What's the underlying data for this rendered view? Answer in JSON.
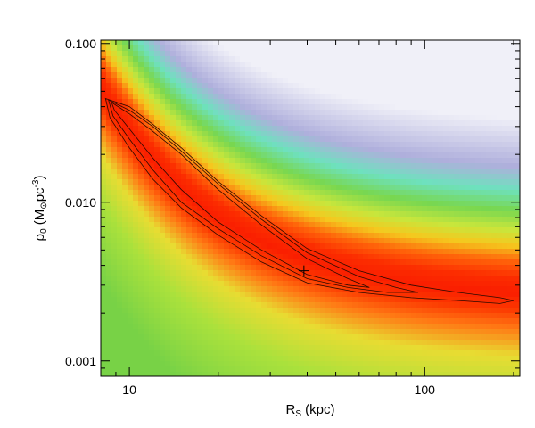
{
  "chart_data": {
    "type": "heatmap",
    "title": "",
    "xlabel": {
      "main": "R",
      "sub": "S",
      "unit": " (kpc)"
    },
    "ylabel": {
      "main": "ρ",
      "sub": "0",
      "unit_open": " (M",
      "sun": "⊙",
      "unit_mid": "pc",
      "exp": "-3",
      "unit_close": ")"
    },
    "x_scale": "log",
    "y_scale": "log",
    "xlim": [
      8.0,
      210.0
    ],
    "ylim": [
      0.0008,
      0.105
    ],
    "x_ticks": [
      {
        "value": 10,
        "label": "10"
      },
      {
        "value": 100,
        "label": "100"
      }
    ],
    "y_ticks": [
      {
        "value": 0.001,
        "label": "0.001"
      },
      {
        "value": 0.01,
        "label": "0.010"
      },
      {
        "value": 0.1,
        "label": "0.100"
      }
    ],
    "colormap": [
      "#e6e6a0",
      "#7fd257",
      "#26b426",
      "#7fdcd0",
      "#a5a5d8",
      "#f4f4f8"
    ],
    "best_fit": {
      "x": 39.0,
      "y": 0.0037
    },
    "contours": [
      {
        "name": "inner",
        "points": [
          [
            8.7,
            0.0425
          ],
          [
            10,
            0.036
          ],
          [
            12,
            0.028
          ],
          [
            15,
            0.02
          ],
          [
            20,
            0.012
          ],
          [
            28,
            0.0072
          ],
          [
            40,
            0.0044
          ],
          [
            55,
            0.0033
          ],
          [
            65,
            0.0029
          ],
          [
            55,
            0.003
          ],
          [
            40,
            0.0035
          ],
          [
            28,
            0.005
          ],
          [
            20,
            0.0075
          ],
          [
            15,
            0.012
          ],
          [
            12,
            0.019
          ],
          [
            10,
            0.029
          ],
          [
            8.9,
            0.038
          ],
          [
            8.7,
            0.0425
          ]
        ]
      },
      {
        "name": "middle",
        "points": [
          [
            8.5,
            0.044
          ],
          [
            10,
            0.038
          ],
          [
            12,
            0.03
          ],
          [
            15,
            0.021
          ],
          [
            20,
            0.013
          ],
          [
            28,
            0.0078
          ],
          [
            40,
            0.0048
          ],
          [
            60,
            0.0034
          ],
          [
            80,
            0.0029
          ],
          [
            95,
            0.0027
          ],
          [
            75,
            0.0027
          ],
          [
            55,
            0.0029
          ],
          [
            40,
            0.0033
          ],
          [
            28,
            0.0046
          ],
          [
            20,
            0.0068
          ],
          [
            15,
            0.01
          ],
          [
            12,
            0.016
          ],
          [
            10,
            0.025
          ],
          [
            8.8,
            0.035
          ],
          [
            8.5,
            0.044
          ]
        ]
      },
      {
        "name": "outer",
        "points": [
          [
            8.3,
            0.045
          ],
          [
            10,
            0.04
          ],
          [
            12,
            0.031
          ],
          [
            15,
            0.022
          ],
          [
            20,
            0.0135
          ],
          [
            28,
            0.0082
          ],
          [
            40,
            0.0051
          ],
          [
            60,
            0.0037
          ],
          [
            90,
            0.003
          ],
          [
            130,
            0.0027
          ],
          [
            180,
            0.0025
          ],
          [
            200,
            0.0024
          ],
          [
            180,
            0.0023
          ],
          [
            130,
            0.0024
          ],
          [
            90,
            0.0025
          ],
          [
            60,
            0.0027
          ],
          [
            40,
            0.0031
          ],
          [
            28,
            0.0042
          ],
          [
            20,
            0.0062
          ],
          [
            15,
            0.0092
          ],
          [
            12,
            0.014
          ],
          [
            10,
            0.022
          ],
          [
            8.6,
            0.034
          ],
          [
            8.3,
            0.045
          ]
        ]
      }
    ],
    "grid": false,
    "legend": "none"
  }
}
